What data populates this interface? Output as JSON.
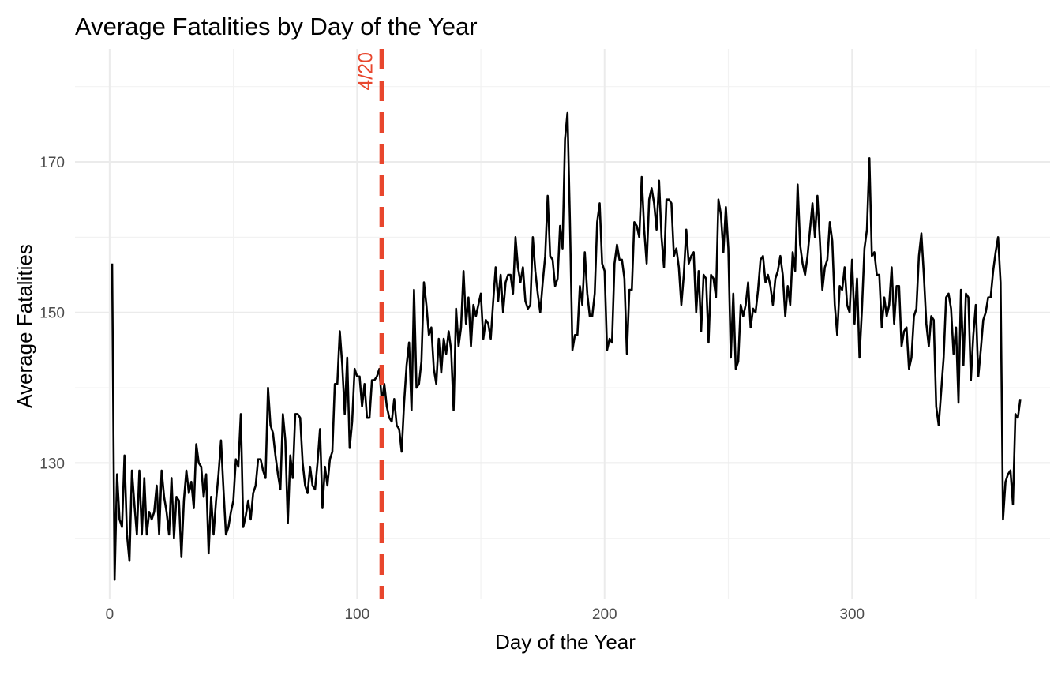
{
  "chart_data": {
    "type": "line",
    "title": "Average Fatalities by Day of the Year",
    "xlabel": "Day of the Year",
    "ylabel": "Average Fatalities",
    "xlim": [
      -14,
      380
    ],
    "ylim": [
      112,
      185
    ],
    "x_ticks": [
      0,
      100,
      200,
      300
    ],
    "y_ticks": [
      130,
      150,
      170
    ],
    "x_minor": [
      50,
      150,
      250,
      350
    ],
    "y_minor": [
      120,
      140,
      160,
      180
    ],
    "grid": true,
    "colors": {
      "series": "#000000",
      "reference": "#e8462d",
      "grid": "#ebebeb"
    },
    "reference_line": {
      "x": 110,
      "label": "4/20"
    },
    "series": [
      {
        "x_start": 1,
        "values": [
          156.5,
          114.5,
          128.5,
          122.5,
          121.5,
          131,
          120.5,
          117,
          129,
          124.5,
          120.5,
          129,
          120.5,
          128,
          120.5,
          123.5,
          122.5,
          123.5,
          127,
          120.5,
          129,
          125.5,
          123.5,
          120.5,
          128,
          120,
          125.5,
          125,
          117.5,
          125,
          129,
          126,
          127.5,
          124,
          132.5,
          130,
          129.5,
          125.5,
          128.5,
          118,
          125.5,
          120.5,
          125,
          128.5,
          133,
          126.5,
          120.5,
          121.5,
          123.5,
          125,
          130.5,
          129.5,
          136.5,
          121.5,
          123,
          125,
          122.5,
          126,
          127,
          130.5,
          130.5,
          129,
          128,
          140,
          135,
          134,
          131,
          128.5,
          126.5,
          136.5,
          133,
          122,
          131,
          128,
          136.5,
          136.5,
          136,
          130,
          127,
          126,
          129.5,
          127,
          126.5,
          130,
          134.5,
          124,
          129.5,
          127,
          130.5,
          131.5,
          140.5,
          140.5,
          147.5,
          143,
          136.5,
          144,
          132,
          135.5,
          142.5,
          141.5,
          141.5,
          137.5,
          140.5,
          136,
          136,
          141,
          141,
          141.5,
          142.5,
          138,
          140.5,
          137.5,
          136,
          135.5,
          138.5,
          135,
          134.5,
          131.5,
          138,
          143,
          146,
          137,
          153,
          140,
          140.5,
          143.5,
          154,
          151,
          147,
          148,
          142.5,
          140.5,
          146.5,
          142,
          146.5,
          144.5,
          147.5,
          145,
          137,
          150.5,
          145.5,
          148,
          155.5,
          148.5,
          152,
          145.5,
          151,
          149.5,
          151,
          152.5,
          146.5,
          149,
          148.5,
          146.5,
          151.5,
          156,
          151.5,
          155,
          150,
          154,
          155,
          155,
          152.5,
          160,
          156,
          154,
          156,
          151.5,
          150.5,
          151,
          160,
          155.5,
          152.5,
          150,
          154,
          157.5,
          165.5,
          157.5,
          157,
          153.5,
          154.5,
          161.5,
          158.5,
          173,
          176.5,
          162,
          145,
          147,
          147,
          153.5,
          151,
          158,
          152.5,
          149.5,
          149.5,
          152.5,
          162,
          164.5,
          156.5,
          155.5,
          145,
          146.5,
          146,
          156.5,
          159,
          157,
          157,
          154.5,
          144.5,
          153,
          153,
          162,
          161.5,
          160,
          168,
          161,
          156.5,
          165,
          166.5,
          164.5,
          161,
          167.5,
          160,
          156,
          165,
          165,
          164.5,
          157.5,
          158.5,
          156,
          151,
          155,
          161,
          156.5,
          157.5,
          158,
          150,
          155.5,
          147.5,
          155,
          154.5,
          146,
          155,
          154.5,
          152,
          165,
          163,
          158,
          164,
          158.5,
          144,
          152.5,
          142.5,
          143.5,
          151,
          149.5,
          151,
          154,
          148,
          150.5,
          150,
          153,
          157,
          157.5,
          154,
          155,
          153.5,
          151,
          154.5,
          155.5,
          157.5,
          155,
          149.5,
          153.5,
          151,
          158,
          155.5,
          167,
          159,
          156.5,
          155,
          157.5,
          161,
          164.5,
          160,
          165.5,
          159.5,
          153,
          156,
          157,
          162,
          159.5,
          151,
          147,
          153.5,
          153,
          156,
          151,
          150,
          157,
          148.5,
          154.5,
          144,
          150.5,
          158.5,
          161,
          170.5,
          157.5,
          158,
          155,
          155,
          148,
          152,
          149.5,
          151,
          156,
          148.5,
          153.5,
          153.5,
          145.5,
          147.5,
          148,
          142.5,
          144,
          149.5,
          150.5,
          157.5,
          160.5,
          155,
          148.5,
          145.5,
          149.5,
          149,
          137.5,
          135,
          139.5,
          144,
          152,
          152.5,
          150.5,
          144.5,
          148,
          138,
          153,
          143,
          152.5,
          152,
          141,
          147,
          151,
          141.5,
          145,
          149,
          150,
          152,
          152,
          155.5,
          158,
          160,
          154,
          122.5,
          127.5,
          128.5,
          129,
          124.5,
          136.5,
          136,
          138.5
        ]
      }
    ]
  }
}
